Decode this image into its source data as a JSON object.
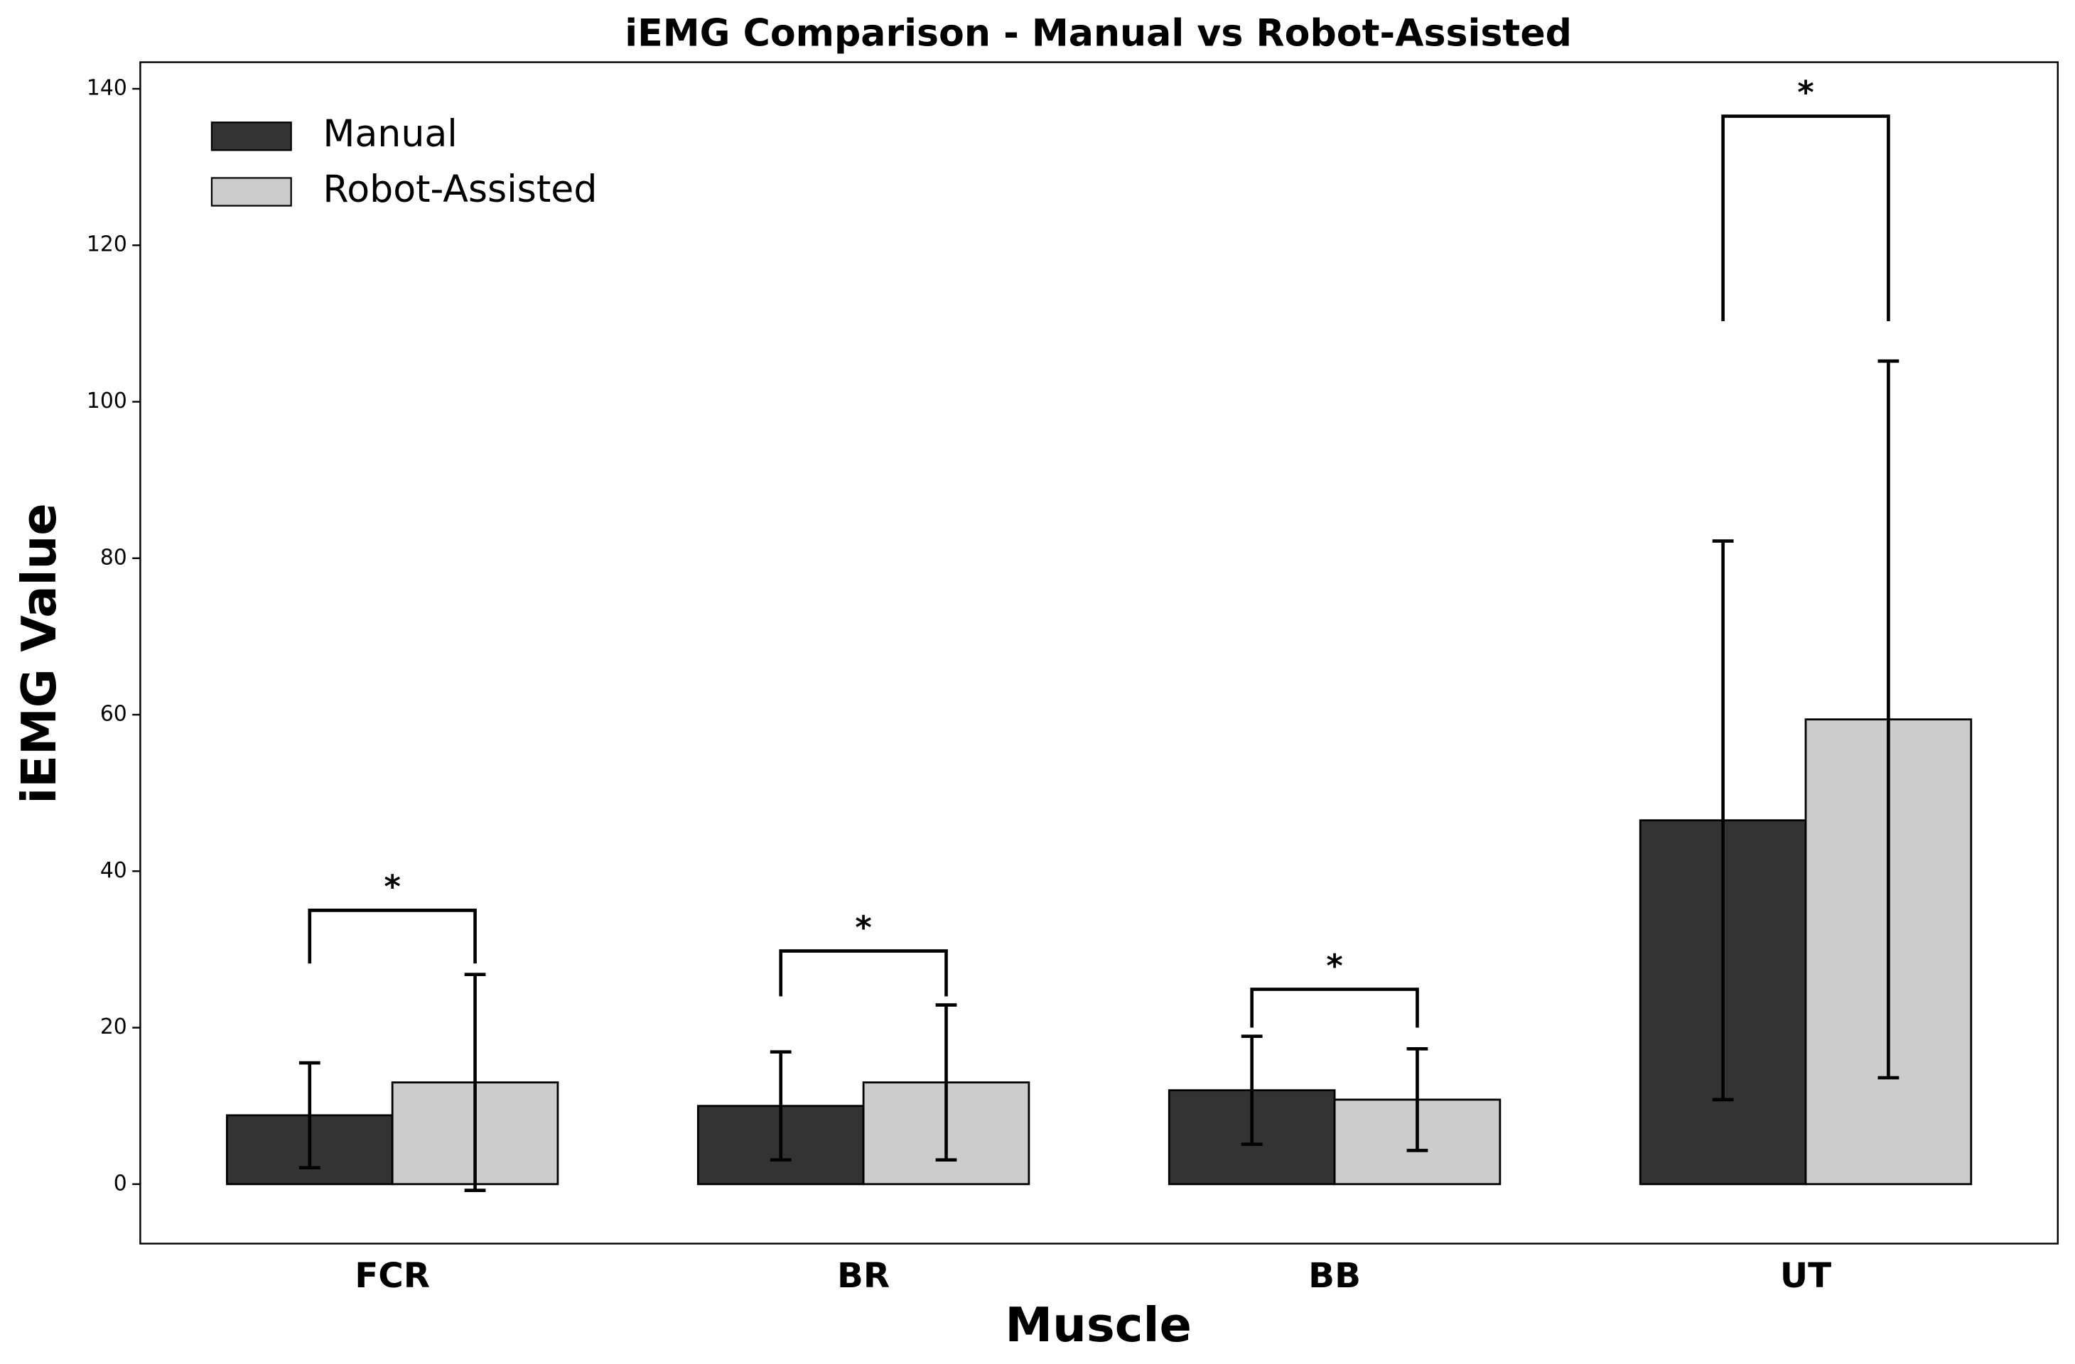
{
  "chart_data": {
    "type": "bar",
    "title": "iEMG Comparison - Manual vs Robot-Assisted",
    "xlabel": "Muscle",
    "ylabel": "iEMG Value",
    "categories": [
      "FCR",
      "BR",
      "BB",
      "UT"
    ],
    "series": [
      {
        "name": "Manual",
        "color": "#333333",
        "values": [
          8.8,
          10.0,
          12.0,
          46.5
        ],
        "errors": [
          6.7,
          6.9,
          6.9,
          35.7
        ]
      },
      {
        "name": "Robot-Assisted",
        "color": "#cccccc",
        "values": [
          13.0,
          13.0,
          10.8,
          59.4
        ],
        "errors": [
          13.8,
          9.9,
          6.5,
          45.8
        ]
      }
    ],
    "annotations": [
      {
        "text": "*",
        "y": 35,
        "y_low": 28.2
      },
      {
        "text": "*",
        "y": 29.8,
        "y_low": 24
      },
      {
        "text": "*",
        "y": 24.9,
        "y_low": 20
      },
      {
        "text": "*",
        "y": 136.5,
        "y_low": 110.3
      }
    ],
    "ylim": [
      -7.6,
      143.4
    ],
    "yticks": [
      0,
      20,
      40,
      60,
      80,
      100,
      120,
      140
    ],
    "grid": false,
    "legend": "upper left"
  }
}
